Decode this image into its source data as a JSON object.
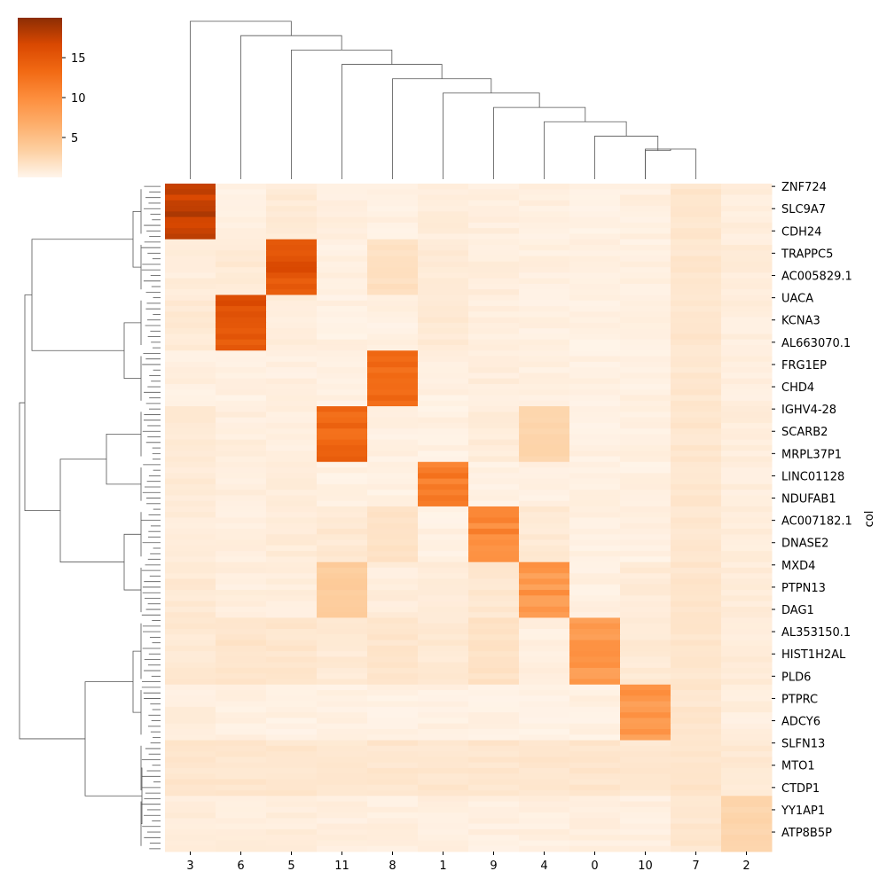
{
  "chart_data": {
    "type": "heatmap",
    "title": "",
    "xlabel": "",
    "ylabel": "col",
    "colormap": "Oranges",
    "colormap_colors": [
      "#fff5eb",
      "#fdd0a2",
      "#fdae6b",
      "#fd8d3c",
      "#f16913",
      "#d94801",
      "#8c2d04"
    ],
    "value_range": [
      0,
      20
    ],
    "colorbar": {
      "ticks": [
        5,
        10,
        15
      ]
    },
    "columns": [
      "3",
      "6",
      "5",
      "11",
      "8",
      "1",
      "9",
      "4",
      "0",
      "10",
      "7",
      "2"
    ],
    "row_tick_labels": [
      "ZNF724",
      "SLC9A7",
      "CDH24",
      "TRAPPC5",
      "AC005829.1",
      "UACA",
      "KCNA3",
      "AL663070.1",
      "FRG1EP",
      "CHD4",
      "IGHV4-28",
      "SCARB2",
      "MRPL37P1",
      "LINC01128",
      "NDUFAB1",
      "AC007182.1",
      "DNASE2",
      "MXD4",
      "PTPN13",
      "DAG1",
      "AL353150.1",
      "HIST1H2AL",
      "PLD6",
      "PTPRC",
      "ADCY6",
      "SLFN13",
      "MTO1",
      "CTDP1",
      "YY1AP1",
      "ATP8B5P"
    ],
    "row_blocks": [
      {
        "rows": [
          0,
          10
        ],
        "values": [
          17.5,
          0.3,
          0.8,
          0.4,
          0.3,
          0.6,
          0.5,
          0.4,
          0.3,
          0.4,
          1.2,
          0.5
        ]
      },
      {
        "rows": [
          10,
          20
        ],
        "values": [
          0.6,
          0.9,
          15.5,
          0.3,
          1.8,
          0.8,
          0.6,
          0.4,
          0.4,
          0.3,
          1.2,
          0.7
        ]
      },
      {
        "rows": [
          20,
          30
        ],
        "values": [
          0.9,
          15.5,
          0.6,
          0.3,
          0.3,
          0.9,
          0.5,
          0.3,
          0.3,
          0.3,
          1.2,
          0.5
        ]
      },
      {
        "rows": [
          30,
          40
        ],
        "values": [
          0.4,
          0.3,
          0.4,
          0.3,
          13.5,
          0.3,
          0.6,
          0.4,
          0.3,
          0.3,
          1.2,
          0.5
        ]
      },
      {
        "rows": [
          40,
          50
        ],
        "values": [
          0.8,
          0.5,
          0.4,
          13.5,
          0.3,
          0.3,
          0.7,
          2.8,
          0.3,
          0.3,
          1.2,
          0.6
        ]
      },
      {
        "rows": [
          50,
          58
        ],
        "values": [
          0.8,
          0.5,
          0.6,
          0.3,
          0.3,
          11.5,
          0.3,
          0.3,
          0.3,
          0.3,
          1.2,
          0.5
        ]
      },
      {
        "rows": [
          58,
          68
        ],
        "values": [
          0.6,
          0.4,
          0.7,
          1.0,
          1.5,
          0.3,
          10.5,
          0.9,
          0.3,
          0.3,
          1.2,
          0.6
        ]
      },
      {
        "rows": [
          68,
          78
        ],
        "values": [
          0.9,
          0.5,
          0.6,
          3.5,
          0.6,
          0.6,
          1.1,
          9.0,
          0.3,
          0.8,
          1.2,
          0.7
        ]
      },
      {
        "rows": [
          78,
          90
        ],
        "values": [
          1.0,
          1.4,
          1.2,
          0.9,
          1.2,
          1.0,
          1.6,
          0.4,
          9.0,
          0.9,
          1.2,
          0.7
        ]
      },
      {
        "rows": [
          90,
          100
        ],
        "values": [
          0.5,
          0.3,
          0.3,
          0.3,
          0.3,
          0.3,
          0.3,
          0.3,
          0.3,
          9.0,
          1.2,
          0.5
        ]
      },
      {
        "rows": [
          100,
          110
        ],
        "values": [
          1.2,
          1.2,
          1.2,
          1.2,
          1.2,
          1.2,
          1.2,
          1.2,
          1.2,
          1.2,
          1.3,
          0.9
        ]
      },
      {
        "rows": [
          110,
          120
        ],
        "values": [
          0.6,
          0.6,
          0.6,
          0.5,
          0.4,
          0.4,
          0.4,
          0.4,
          0.4,
          0.4,
          1.2,
          2.8
        ]
      }
    ],
    "row_dendrogram_lines": 120,
    "column_dendrogram_leaves": 12
  }
}
